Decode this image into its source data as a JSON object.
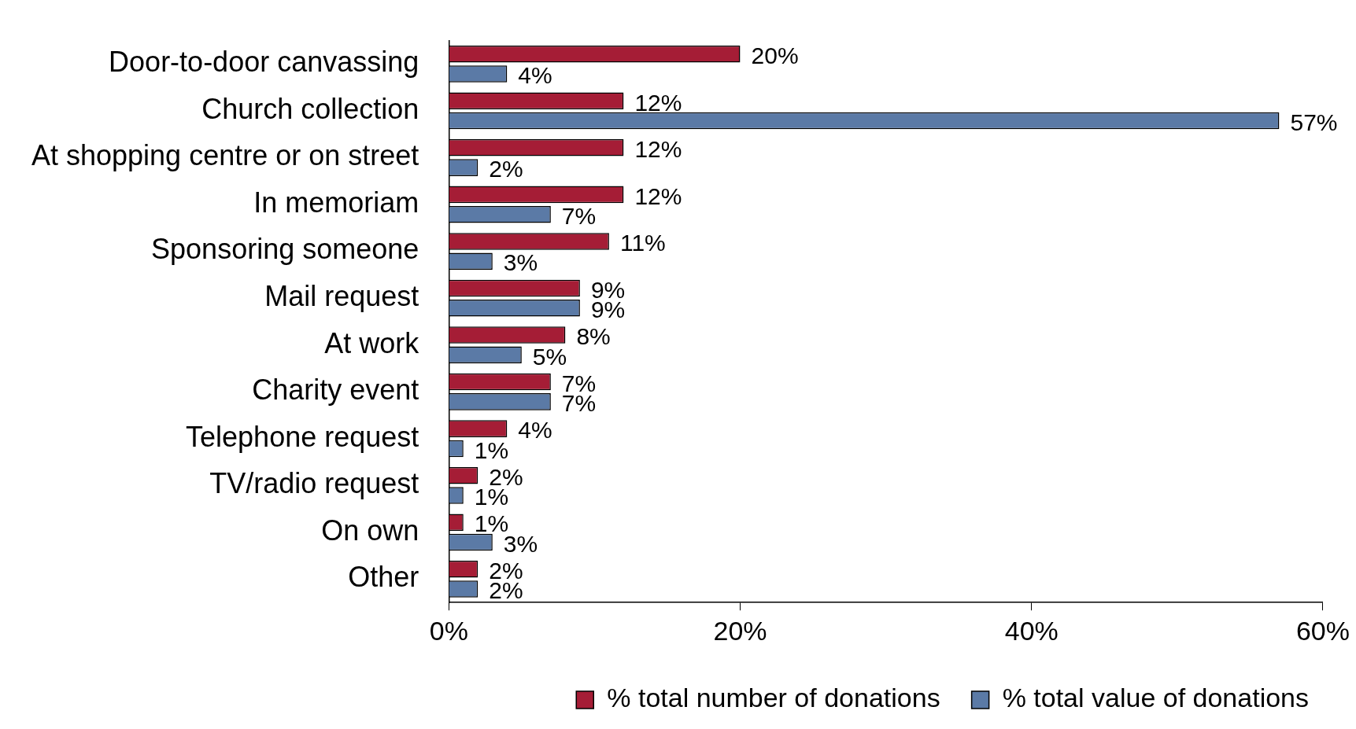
{
  "chart_data": {
    "type": "bar",
    "orientation": "horizontal",
    "categories": [
      "Door-to-door canvassing",
      "Church collection",
      "At shopping centre or on street",
      "In memoriam",
      "Sponsoring someone",
      "Mail request",
      "At work",
      "Charity event",
      "Telephone request",
      "TV/radio request",
      "On own",
      "Other"
    ],
    "series": [
      {
        "name": "% total number of donations",
        "color": "#a51d36",
        "values": [
          20,
          12,
          12,
          12,
          11,
          9,
          8,
          7,
          4,
          2,
          1,
          2
        ],
        "value_labels": [
          "20%",
          "12%",
          "12%",
          "12%",
          "11%",
          "9%",
          "8%",
          "7%",
          "4%",
          "2%",
          "1%",
          "2%"
        ]
      },
      {
        "name": "% total value of donations",
        "color": "#5b7aa6",
        "values": [
          4,
          57,
          2,
          7,
          3,
          9,
          5,
          7,
          1,
          1,
          3,
          2
        ],
        "value_labels": [
          "4%",
          "57%",
          "2%",
          "7%",
          "3%",
          "9%",
          "5%",
          "7%",
          "1%",
          "1%",
          "3%",
          "2%"
        ]
      }
    ],
    "xlim": [
      0,
      60
    ],
    "xticks": [
      {
        "value": 0,
        "label": "0%"
      },
      {
        "value": 20,
        "label": "20%"
      },
      {
        "value": 40,
        "label": "40%"
      },
      {
        "value": 60,
        "label": "60%"
      }
    ],
    "legend": "bottom"
  }
}
